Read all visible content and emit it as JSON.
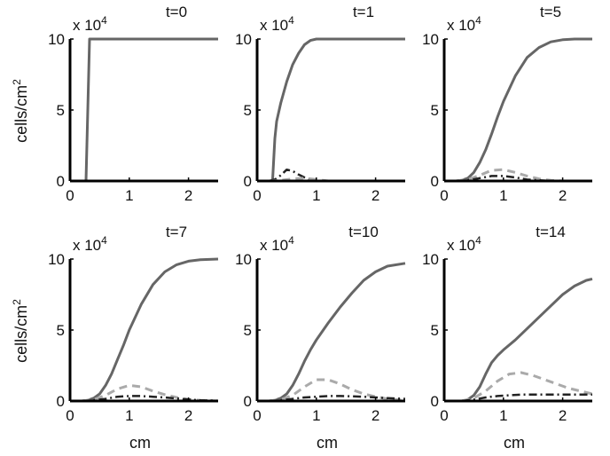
{
  "figure": {
    "ylabel": "cells/cm",
    "ylabel_sup": "2",
    "xlabel": "cm",
    "multiplier_base": "x 10",
    "multiplier_exp": "4"
  },
  "chart_data": [
    {
      "type": "line",
      "title": "t=0",
      "xlim": [
        0,
        2.5
      ],
      "ylim": [
        0,
        10
      ],
      "xticks": [
        0,
        1,
        2
      ],
      "yticks": [
        0,
        5,
        10
      ],
      "series": [
        {
          "style": "solid",
          "color": "#666666",
          "x": [
            0.2,
            0.27,
            0.3,
            0.33,
            0.5,
            1.0,
            1.5,
            2.0,
            2.5
          ],
          "y": [
            0,
            0,
            5,
            10,
            10,
            10,
            10,
            10,
            10
          ]
        },
        {
          "style": "dashed",
          "color": "#aaaaaa",
          "x": [
            0.2,
            2.5
          ],
          "y": [
            0,
            0
          ]
        },
        {
          "style": "dashdot",
          "color": "#222222",
          "x": [
            0.2,
            2.5
          ],
          "y": [
            0,
            0
          ]
        }
      ]
    },
    {
      "type": "line",
      "title": "t=1",
      "xlim": [
        0,
        2.5
      ],
      "ylim": [
        0,
        10
      ],
      "xticks": [
        0,
        1,
        2
      ],
      "yticks": [
        0,
        5,
        10
      ],
      "series": [
        {
          "style": "solid",
          "color": "#666666",
          "x": [
            0.2,
            0.26,
            0.3,
            0.33,
            0.4,
            0.5,
            0.6,
            0.7,
            0.8,
            0.9,
            1.0,
            1.2,
            1.5,
            2.0,
            2.5
          ],
          "y": [
            0,
            0,
            3,
            4.2,
            5.5,
            7,
            8.2,
            9,
            9.6,
            9.9,
            10,
            10,
            10,
            10,
            10
          ]
        },
        {
          "style": "dashdot",
          "color": "#222222",
          "x": [
            0.2,
            0.3,
            0.4,
            0.5,
            0.6,
            0.7,
            0.8,
            0.9,
            1.0,
            1.2,
            2.5
          ],
          "y": [
            0,
            0.1,
            0.4,
            0.8,
            0.7,
            0.45,
            0.25,
            0.1,
            0,
            0,
            0
          ]
        },
        {
          "style": "dashed",
          "color": "#aaaaaa",
          "x": [
            0.2,
            0.4,
            0.6,
            0.8,
            1.0,
            1.2,
            2.5
          ],
          "y": [
            0,
            0.05,
            0.15,
            0.2,
            0.1,
            0,
            0
          ]
        }
      ]
    },
    {
      "type": "line",
      "title": "t=5",
      "xlim": [
        0,
        2.5
      ],
      "ylim": [
        0,
        10
      ],
      "xticks": [
        0,
        1,
        2
      ],
      "yticks": [
        0,
        5,
        10
      ],
      "series": [
        {
          "style": "solid",
          "color": "#666666",
          "x": [
            0.2,
            0.3,
            0.4,
            0.5,
            0.6,
            0.7,
            0.8,
            0.9,
            1.0,
            1.2,
            1.4,
            1.6,
            1.8,
            2.0,
            2.2,
            2.5
          ],
          "y": [
            0,
            0.05,
            0.2,
            0.6,
            1.3,
            2.2,
            3.3,
            4.5,
            5.6,
            7.4,
            8.7,
            9.4,
            9.8,
            9.95,
            10,
            10
          ]
        },
        {
          "style": "dashed",
          "color": "#aaaaaa",
          "x": [
            0.2,
            0.4,
            0.6,
            0.8,
            1.0,
            1.2,
            1.4,
            1.6,
            1.8,
            2.0,
            2.5
          ],
          "y": [
            0,
            0.1,
            0.4,
            0.75,
            0.8,
            0.6,
            0.35,
            0.15,
            0.05,
            0,
            0
          ]
        },
        {
          "style": "dashdot",
          "color": "#222222",
          "x": [
            0.2,
            0.4,
            0.6,
            0.8,
            1.0,
            1.2,
            1.4,
            1.6,
            1.8,
            2.5
          ],
          "y": [
            0,
            0.05,
            0.2,
            0.35,
            0.35,
            0.25,
            0.1,
            0.05,
            0,
            0
          ]
        }
      ]
    },
    {
      "type": "line",
      "title": "t=7",
      "xlim": [
        0,
        2.5
      ],
      "ylim": [
        0,
        10
      ],
      "xticks": [
        0,
        1,
        2
      ],
      "yticks": [
        0,
        5,
        10
      ],
      "series": [
        {
          "style": "solid",
          "color": "#666666",
          "x": [
            0.2,
            0.3,
            0.4,
            0.5,
            0.6,
            0.7,
            0.8,
            0.9,
            1.0,
            1.2,
            1.4,
            1.6,
            1.8,
            2.0,
            2.2,
            2.5
          ],
          "y": [
            0,
            0.05,
            0.2,
            0.5,
            1.1,
            1.9,
            2.9,
            3.9,
            5.0,
            6.8,
            8.2,
            9.1,
            9.6,
            9.85,
            9.95,
            10
          ]
        },
        {
          "style": "dashed",
          "color": "#aaaaaa",
          "x": [
            0.2,
            0.4,
            0.6,
            0.8,
            1.0,
            1.2,
            1.4,
            1.6,
            1.8,
            2.0,
            2.2,
            2.5
          ],
          "y": [
            0,
            0.1,
            0.4,
            0.85,
            1.1,
            1.0,
            0.7,
            0.45,
            0.25,
            0.12,
            0.05,
            0
          ]
        },
        {
          "style": "dashdot",
          "color": "#222222",
          "x": [
            0.2,
            0.4,
            0.6,
            0.8,
            1.0,
            1.2,
            1.4,
            1.6,
            1.8,
            2.0,
            2.2,
            2.5
          ],
          "y": [
            0,
            0.05,
            0.15,
            0.3,
            0.35,
            0.35,
            0.3,
            0.25,
            0.18,
            0.1,
            0.05,
            0.02
          ]
        }
      ]
    },
    {
      "type": "line",
      "title": "t=10",
      "xlim": [
        0,
        2.5
      ],
      "ylim": [
        0,
        10
      ],
      "xticks": [
        0,
        1,
        2
      ],
      "yticks": [
        0,
        5,
        10
      ],
      "series": [
        {
          "style": "solid",
          "color": "#666666",
          "x": [
            0.2,
            0.3,
            0.4,
            0.5,
            0.6,
            0.7,
            0.8,
            0.9,
            1.0,
            1.2,
            1.4,
            1.6,
            1.8,
            2.0,
            2.2,
            2.5
          ],
          "y": [
            0,
            0.05,
            0.2,
            0.5,
            1.1,
            1.9,
            2.8,
            3.6,
            4.3,
            5.5,
            6.6,
            7.6,
            8.5,
            9.1,
            9.5,
            9.7
          ]
        },
        {
          "style": "dashed",
          "color": "#aaaaaa",
          "x": [
            0.2,
            0.4,
            0.6,
            0.8,
            1.0,
            1.2,
            1.4,
            1.6,
            1.8,
            2.0,
            2.2,
            2.5
          ],
          "y": [
            0,
            0.1,
            0.4,
            1.0,
            1.5,
            1.5,
            1.2,
            0.8,
            0.5,
            0.3,
            0.15,
            0.05
          ]
        },
        {
          "style": "dashdot",
          "color": "#222222",
          "x": [
            0.2,
            0.4,
            0.6,
            0.8,
            1.0,
            1.2,
            1.4,
            1.6,
            1.8,
            2.0,
            2.2,
            2.5
          ],
          "y": [
            0,
            0.05,
            0.15,
            0.25,
            0.3,
            0.35,
            0.35,
            0.33,
            0.3,
            0.25,
            0.2,
            0.15
          ]
        }
      ]
    },
    {
      "type": "line",
      "title": "t=14",
      "xlim": [
        0,
        2.5
      ],
      "ylim": [
        0,
        10
      ],
      "xticks": [
        0,
        1,
        2
      ],
      "yticks": [
        0,
        5,
        10
      ],
      "series": [
        {
          "style": "solid",
          "color": "#666666",
          "x": [
            0.3,
            0.4,
            0.5,
            0.6,
            0.7,
            0.8,
            0.9,
            1.0,
            1.2,
            1.4,
            1.6,
            1.8,
            2.0,
            2.2,
            2.4,
            2.5
          ],
          "y": [
            0,
            0.1,
            0.4,
            1.0,
            1.9,
            2.7,
            3.2,
            3.6,
            4.3,
            5.1,
            5.9,
            6.7,
            7.5,
            8.1,
            8.5,
            8.6
          ]
        },
        {
          "style": "dashed",
          "color": "#aaaaaa",
          "x": [
            0.3,
            0.5,
            0.7,
            0.9,
            1.1,
            1.3,
            1.5,
            1.7,
            1.9,
            2.1,
            2.3,
            2.5
          ],
          "y": [
            0,
            0.2,
            0.7,
            1.4,
            1.9,
            2.0,
            1.8,
            1.5,
            1.2,
            0.9,
            0.7,
            0.5
          ]
        },
        {
          "style": "dashdot",
          "color": "#222222",
          "x": [
            0.3,
            0.5,
            0.7,
            0.9,
            1.1,
            1.3,
            1.5,
            1.7,
            1.9,
            2.1,
            2.3,
            2.5
          ],
          "y": [
            0,
            0.1,
            0.25,
            0.35,
            0.4,
            0.45,
            0.45,
            0.45,
            0.45,
            0.45,
            0.45,
            0.45
          ]
        }
      ]
    }
  ]
}
